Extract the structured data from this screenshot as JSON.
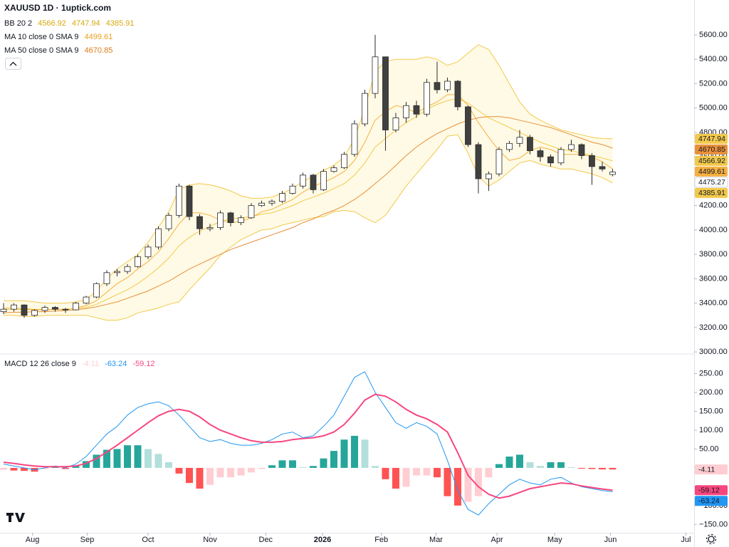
{
  "chart_data": {
    "type": "candlestick",
    "title": "XAUUSD 1D · 1uptick.com",
    "xlim": [
      -0.345,
      66.9
    ],
    "xticks": [
      {
        "value": 2.8,
        "label": "Aug"
      },
      {
        "value": 8.1,
        "label": "Sep"
      },
      {
        "value": 14.0,
        "label": "Oct"
      },
      {
        "value": 20.0,
        "label": "Nov"
      },
      {
        "value": 25.4,
        "label": "Dec"
      },
      {
        "value": 30.9,
        "label": "2026"
      },
      {
        "value": 36.6,
        "label": "Feb"
      },
      {
        "value": 41.9,
        "label": "Mar"
      },
      {
        "value": 47.8,
        "label": "Apr"
      },
      {
        "value": 53.4,
        "label": "May"
      },
      {
        "value": 58.8,
        "label": "Jun"
      },
      {
        "value": 66.1,
        "label": "Jul"
      }
    ],
    "ylim": [
      2983,
      5886
    ],
    "yticks": [
      {
        "value": 3000,
        "label": "3000.00"
      },
      {
        "value": 3200,
        "label": "3200.00"
      },
      {
        "value": 3400,
        "label": "3400.00"
      },
      {
        "value": 3600,
        "label": "3600.00"
      },
      {
        "value": 3800,
        "label": "3800.00"
      },
      {
        "value": 4000,
        "label": "4000.00"
      },
      {
        "value": 4200,
        "label": "4200.00"
      },
      {
        "value": 4400,
        "label": "4400.00"
      },
      {
        "value": 4600,
        "label": "4600.00"
      },
      {
        "value": 4800,
        "label": "4800.00"
      },
      {
        "value": 5000,
        "label": "5000.00"
      },
      {
        "value": 5200,
        "label": "5200.00"
      },
      {
        "value": 5400,
        "label": "5400.00"
      },
      {
        "value": 5600,
        "label": "5600.00"
      }
    ],
    "grid": false,
    "up_color": "#ffffff",
    "down_color": "#404040",
    "wick_color": "#2a2a2a",
    "open": [
      3330,
      3350,
      3385,
      3300,
      3340,
      3365,
      3350,
      3345,
      3400,
      3450,
      3560,
      3650,
      3660,
      3700,
      3780,
      3860,
      4010,
      4120,
      4360,
      4110,
      4010,
      4020,
      4140,
      4060,
      4100,
      4200,
      4220,
      4235,
      4300,
      4360,
      4450,
      4330,
      4480,
      4510,
      4620,
      4870,
      5120,
      5420,
      4820,
      4920,
      5020,
      4950,
      5210,
      5150,
      5220,
      5010,
      4700,
      4420,
      4460,
      4660,
      4710,
      4760,
      4650,
      4600,
      4550,
      4660,
      4700,
      4610,
      4520,
      4455
    ],
    "high": [
      3400,
      3400,
      3390,
      3350,
      3380,
      3375,
      3360,
      3410,
      3460,
      3570,
      3670,
      3680,
      3720,
      3800,
      3880,
      4030,
      4140,
      4380,
      4370,
      4130,
      4050,
      4160,
      4150,
      4120,
      4220,
      4240,
      4250,
      4320,
      4380,
      4470,
      4460,
      4500,
      4530,
      4640,
      4900,
      5150,
      5600,
      5420,
      4960,
      5050,
      5060,
      5240,
      5380,
      5250,
      5230,
      5020,
      4720,
      4480,
      4680,
      4730,
      4820,
      4780,
      4670,
      4620,
      4680,
      4740,
      4710,
      4630,
      4560,
      4500
    ],
    "low": [
      3310,
      3330,
      3280,
      3290,
      3320,
      3330,
      3320,
      3340,
      3390,
      3440,
      3540,
      3620,
      3640,
      3690,
      3760,
      3840,
      3990,
      4100,
      4080,
      3960,
      3990,
      4000,
      4030,
      4040,
      4090,
      4190,
      4200,
      4220,
      4290,
      4340,
      4300,
      4320,
      4470,
      4500,
      4600,
      4850,
      5080,
      4650,
      4800,
      4880,
      4920,
      4930,
      5120,
      5130,
      4980,
      4680,
      4300,
      4320,
      4440,
      4640,
      4680,
      4620,
      4560,
      4520,
      4530,
      4640,
      4580,
      4370,
      4480,
      4440
    ],
    "close": [
      3350,
      3385,
      3300,
      3340,
      3365,
      3350,
      3345,
      3400,
      3450,
      3560,
      3650,
      3660,
      3700,
      3780,
      3860,
      4010,
      4120,
      4360,
      4110,
      4010,
      4020,
      4140,
      4060,
      4100,
      4200,
      4220,
      4235,
      4300,
      4360,
      4450,
      4330,
      4480,
      4510,
      4620,
      4870,
      5120,
      5420,
      4820,
      4920,
      5020,
      4950,
      5210,
      5150,
      5220,
      5010,
      4700,
      4420,
      4460,
      4660,
      4710,
      4760,
      4650,
      4600,
      4550,
      4660,
      4700,
      4610,
      4520,
      4500,
      4475.27
    ],
    "bb": {
      "name": "BB 20 2",
      "color": "#f2c94c",
      "text_color": "#d9a90c",
      "fill": "rgba(253,216,53,0.13)",
      "basis": [
        3360,
        3360,
        3355,
        3350,
        3350,
        3350,
        3350,
        3355,
        3365,
        3390,
        3430,
        3470,
        3510,
        3560,
        3620,
        3690,
        3770,
        3870,
        3940,
        3990,
        4030,
        4070,
        4090,
        4100,
        4110,
        4130,
        4140,
        4170,
        4200,
        4240,
        4270,
        4300,
        4340,
        4380,
        4450,
        4550,
        4680,
        4750,
        4820,
        4880,
        4930,
        4990,
        5030,
        5060,
        5080,
        5040,
        4980,
        4920,
        4880,
        4840,
        4800,
        4760,
        4720,
        4690,
        4660,
        4650,
        4630,
        4610,
        4590,
        4566.92
      ],
      "upper": [
        3420,
        3420,
        3420,
        3410,
        3400,
        3400,
        3400,
        3410,
        3430,
        3500,
        3600,
        3680,
        3740,
        3800,
        3900,
        4020,
        4150,
        4330,
        4370,
        4380,
        4370,
        4350,
        4320,
        4280,
        4260,
        4260,
        4270,
        4300,
        4340,
        4400,
        4440,
        4490,
        4530,
        4600,
        4750,
        5000,
        5300,
        5380,
        5400,
        5400,
        5400,
        5420,
        5400,
        5350,
        5380,
        5450,
        5520,
        5480,
        5350,
        5200,
        5050,
        4950,
        4900,
        4860,
        4820,
        4800,
        4780,
        4760,
        4750,
        4747.94
      ],
      "lower": [
        3300,
        3300,
        3290,
        3290,
        3300,
        3300,
        3300,
        3300,
        3300,
        3280,
        3260,
        3260,
        3280,
        3320,
        3340,
        3360,
        3390,
        3410,
        3510,
        3600,
        3690,
        3790,
        3860,
        3920,
        3960,
        4000,
        4010,
        4040,
        4060,
        4080,
        4100,
        4110,
        4150,
        4160,
        4150,
        4100,
        4060,
        4120,
        4240,
        4360,
        4460,
        4560,
        4660,
        4770,
        4780,
        4630,
        4440,
        4360,
        4410,
        4480,
        4550,
        4570,
        4540,
        4520,
        4500,
        4500,
        4480,
        4460,
        4430,
        4385.91
      ]
    },
    "ma": [
      {
        "name": "MA 10 close 0 SMA 9",
        "color": "#f5b041",
        "text_color": "#e8a020",
        "values": [
          3350,
          3350,
          3350,
          3345,
          3345,
          3350,
          3345,
          3360,
          3380,
          3420,
          3490,
          3560,
          3610,
          3680,
          3740,
          3820,
          3930,
          4050,
          4140,
          4140,
          4120,
          4080,
          4060,
          4070,
          4100,
          4150,
          4170,
          4210,
          4250,
          4310,
          4360,
          4390,
          4430,
          4480,
          4570,
          4720,
          4900,
          4970,
          5020,
          5000,
          4960,
          5010,
          5050,
          5110,
          5110,
          5020,
          4880,
          4760,
          4650,
          4570,
          4590,
          4650,
          4680,
          4660,
          4620,
          4620,
          4620,
          4600,
          4560,
          4499.61
        ]
      },
      {
        "name": "MA 50 close 0 SMA 9",
        "color": "#e8903a",
        "text_color": "#e07b1a",
        "values": [
          3320,
          3325,
          3325,
          3330,
          3330,
          3335,
          3340,
          3345,
          3355,
          3370,
          3390,
          3410,
          3440,
          3470,
          3500,
          3540,
          3580,
          3630,
          3680,
          3720,
          3760,
          3800,
          3840,
          3870,
          3900,
          3930,
          3960,
          3990,
          4020,
          4060,
          4090,
          4130,
          4160,
          4200,
          4250,
          4310,
          4380,
          4450,
          4530,
          4610,
          4680,
          4740,
          4790,
          4830,
          4870,
          4900,
          4920,
          4930,
          4930,
          4920,
          4900,
          4880,
          4860,
          4840,
          4810,
          4780,
          4750,
          4720,
          4700,
          4670.85
        ]
      }
    ],
    "macd": {
      "type": "macd",
      "name": "MACD 12 26 close 9",
      "ylim": [
        -172,
        302
      ],
      "yticks": [
        {
          "value": -150,
          "label": "−150.00"
        },
        {
          "value": -100,
          "label": "−100.00"
        },
        {
          "value": 50,
          "label": "50.00"
        },
        {
          "value": 100,
          "label": "100.00"
        },
        {
          "value": 150,
          "label": "150.00"
        },
        {
          "value": 200,
          "label": "200.00"
        },
        {
          "value": 250,
          "label": "250.00"
        }
      ],
      "histogram": [
        -5,
        -7,
        -8,
        -10,
        -3,
        2,
        -3,
        5,
        18,
        35,
        48,
        50,
        60,
        60,
        50,
        37,
        15,
        -15,
        -40,
        -55,
        -45,
        -25,
        -25,
        -20,
        -12,
        -3,
        7,
        20,
        20,
        2,
        5,
        25,
        45,
        75,
        85,
        75,
        5,
        -30,
        -55,
        -50,
        -20,
        -20,
        -25,
        -75,
        -100,
        -90,
        -75,
        -25,
        10,
        30,
        35,
        15,
        5,
        15,
        15,
        2,
        -2,
        -3,
        -4,
        -4.11
      ],
      "macd_line": [
        10,
        5,
        0,
        -5,
        0,
        5,
        0,
        10,
        30,
        60,
        90,
        110,
        140,
        160,
        170,
        175,
        165,
        140,
        110,
        80,
        70,
        75,
        65,
        60,
        60,
        65,
        75,
        90,
        95,
        80,
        85,
        110,
        140,
        190,
        240,
        255,
        200,
        160,
        120,
        105,
        120,
        110,
        90,
        20,
        -60,
        -110,
        -125,
        -95,
        -70,
        -45,
        -30,
        -40,
        -45,
        -30,
        -25,
        -40,
        -50,
        -55,
        -60,
        -63.24
      ],
      "signal": [
        15,
        12,
        8,
        5,
        3,
        3,
        3,
        5,
        12,
        25,
        42,
        60,
        80,
        100,
        120,
        138,
        150,
        155,
        150,
        135,
        115,
        100,
        90,
        80,
        72,
        68,
        68,
        70,
        75,
        78,
        80,
        85,
        95,
        115,
        145,
        180,
        195,
        190,
        175,
        155,
        140,
        130,
        115,
        95,
        40,
        -20,
        -50,
        -70,
        -80,
        -75,
        -65,
        -55,
        -50,
        -45,
        -40,
        -42,
        -48,
        -52,
        -56,
        -59.12
      ],
      "macd_color": "#2196f3",
      "signal_color": "#f7467e",
      "hist_colors": {
        "pos_up": "#26a69a",
        "pos_down": "#b2dfdb",
        "neg_down": "#ff5252",
        "neg_up": "#ffcdd2"
      }
    }
  }
}
